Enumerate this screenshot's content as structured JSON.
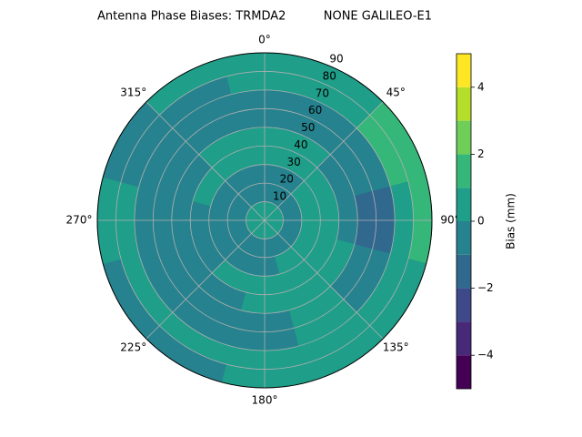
{
  "chart_data": {
    "type": "polar_contour",
    "title": "Antenna Phase Biases: TRMDA2          NONE GALILEO-E1",
    "azimuth": [
      0,
      30,
      60,
      90,
      120,
      150,
      180,
      210,
      240,
      270,
      300,
      330
    ],
    "elevation": [
      5,
      15,
      25,
      35,
      45,
      55,
      65,
      75,
      85
    ],
    "z": [
      [
        0.3,
        0.3,
        0.3,
        0.3,
        0.3,
        0.3,
        0.3,
        0.3,
        0.3,
        0.3,
        0.3,
        0.3
      ],
      [
        -0.5,
        -0.5,
        -0.5,
        -0.5,
        -0.5,
        -0.5,
        -0.6,
        -0.6,
        -0.5,
        -0.5,
        -0.5,
        -0.5
      ],
      [
        -0.4,
        -0.4,
        0.3,
        0.3,
        0.3,
        0.3,
        -0.4,
        -0.5,
        -0.5,
        -0.5,
        -0.5,
        -0.5
      ],
      [
        0.5,
        0.5,
        0.5,
        0.5,
        0.5,
        0.5,
        0.5,
        0.5,
        -0.4,
        -0.4,
        0.5,
        0.5
      ],
      [
        0.4,
        0.4,
        -0.5,
        -0.6,
        0.4,
        0.4,
        0.4,
        -0.5,
        -0.5,
        -0.5,
        -0.5,
        0.4
      ],
      [
        -0.5,
        -0.6,
        -0.8,
        -1.3,
        -0.6,
        0.4,
        -0.5,
        -0.5,
        -0.5,
        -0.5,
        -0.5,
        -0.5
      ],
      [
        -0.5,
        -0.5,
        -0.6,
        -1.4,
        -0.6,
        0.4,
        -0.5,
        -0.5,
        -0.5,
        -0.5,
        -0.5,
        -0.5
      ],
      [
        0.5,
        0.6,
        1.2,
        0.5,
        0.5,
        0.5,
        0.5,
        0.5,
        0.5,
        0.5,
        -0.5,
        -0.5
      ],
      [
        0.5,
        0.8,
        1.5,
        1.2,
        0.5,
        0.5,
        0.5,
        -0.4,
        -0.4,
        0.5,
        -0.5,
        0.5
      ]
    ],
    "rlim": [
      0,
      90
    ],
    "rticks": [
      10,
      20,
      30,
      40,
      50,
      60,
      70,
      80,
      90
    ],
    "thetaticks": [
      {
        "value": 0,
        "label": "0°"
      },
      {
        "value": 45,
        "label": "45°"
      },
      {
        "value": 90,
        "label": "90°"
      },
      {
        "value": 135,
        "label": "135°"
      },
      {
        "value": 180,
        "label": "180°"
      },
      {
        "value": 225,
        "label": "225°"
      },
      {
        "value": 270,
        "label": "270°"
      },
      {
        "value": 315,
        "label": "315°"
      }
    ],
    "levels": [
      -5,
      -4,
      -3,
      -2,
      -1,
      0,
      1,
      2,
      3,
      4,
      5
    ],
    "colors": [
      "#440154",
      "#482878",
      "#3e4989",
      "#31688e",
      "#26828e",
      "#1f9e89",
      "#35b779",
      "#6ece58",
      "#b5de2b",
      "#fde725"
    ],
    "colorbar_label": "Bias (mm)",
    "colorbar_ticks": [
      {
        "value": -4,
        "label": "−4"
      },
      {
        "value": -2,
        "label": "−2"
      },
      0,
      2,
      4
    ],
    "grid": true
  }
}
